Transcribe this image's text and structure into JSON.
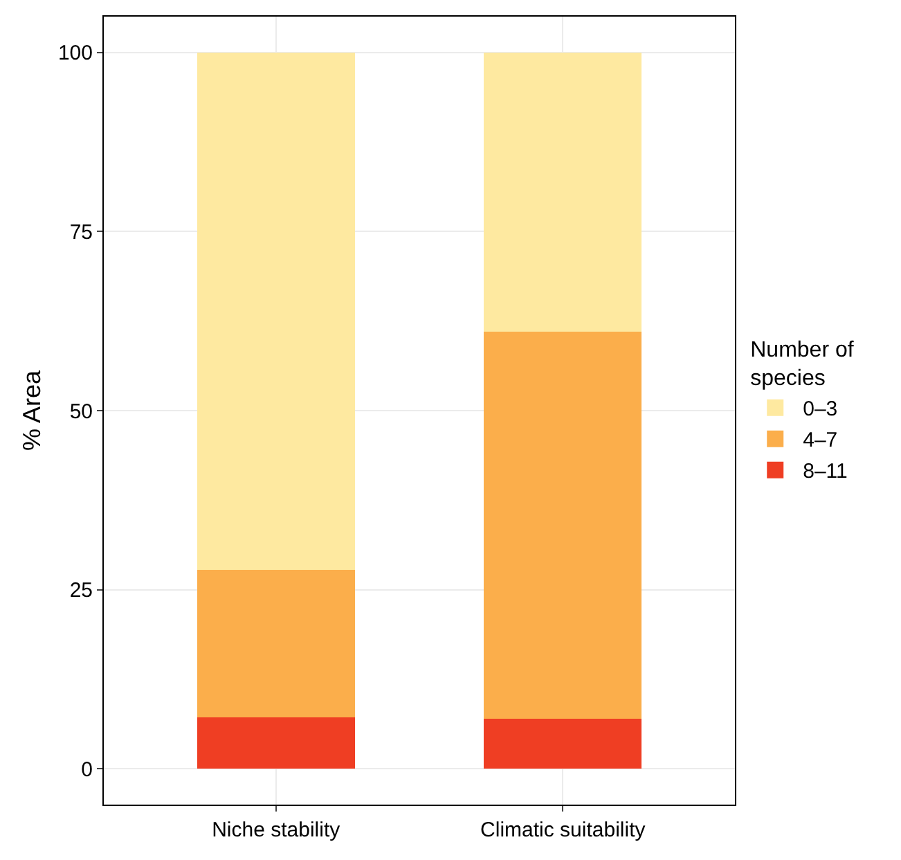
{
  "chart_data": {
    "type": "bar",
    "stacked": true,
    "categories": [
      "Niche stability",
      "Climatic suitability"
    ],
    "ylabel": "% Area",
    "legend_title": "Number of\nspecies",
    "series": [
      {
        "name": "8–11",
        "color": "#ef3e23",
        "values": [
          7.2,
          7.0
        ]
      },
      {
        "name": "4–7",
        "color": "#fbae4b",
        "values": [
          20.6,
          54.0
        ]
      },
      {
        "name": "0–3",
        "color": "#fee9a0",
        "values": [
          72.2,
          39.0
        ]
      }
    ],
    "ylim": [
      -5,
      105
    ],
    "yticks": [
      0,
      25,
      50,
      75,
      100
    ],
    "grid": true,
    "legend": "right"
  }
}
